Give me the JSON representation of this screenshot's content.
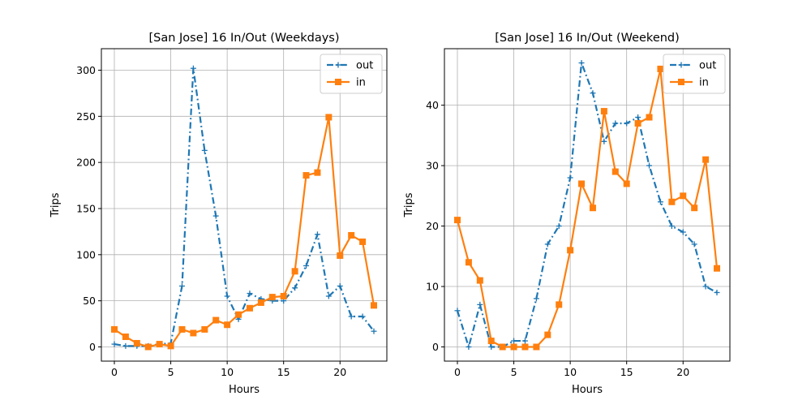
{
  "chart_data": [
    {
      "type": "line",
      "title": "[San Jose] 16 In/Out (Weekdays)",
      "xlabel": "Hours",
      "ylabel": "Trips",
      "xlim": [
        -1.15,
        24.15
      ],
      "ylim": [
        -15.4,
        323.3
      ],
      "xticks": [
        0,
        5,
        10,
        15,
        20
      ],
      "yticks": [
        0,
        50,
        100,
        150,
        200,
        250,
        300
      ],
      "grid": true,
      "legend_position": "top-right",
      "x": [
        0,
        1,
        2,
        3,
        4,
        5,
        6,
        7,
        8,
        9,
        10,
        11,
        12,
        13,
        14,
        15,
        16,
        17,
        18,
        19,
        20,
        21,
        22,
        23
      ],
      "series": [
        {
          "name": "out",
          "color": "#1f77b4",
          "style": "dashdot",
          "marker": "plus",
          "values": [
            3,
            1,
            1,
            1,
            3,
            4,
            66,
            302,
            213,
            142,
            55,
            30,
            58,
            52,
            50,
            50,
            64,
            88,
            122,
            55,
            66,
            33,
            33,
            17
          ]
        },
        {
          "name": "in",
          "color": "#ff7f0e",
          "style": "solid",
          "marker": "square",
          "values": [
            19,
            11,
            4,
            0,
            3,
            1,
            19,
            15,
            19,
            29,
            24,
            35,
            42,
            48,
            54,
            55,
            82,
            186,
            189,
            249,
            99,
            121,
            114,
            45
          ]
        }
      ]
    },
    {
      "type": "line",
      "title": "[San Jose] 16 In/Out (Weekend)",
      "xlabel": "Hours",
      "ylabel": "Trips",
      "xlim": [
        -1.15,
        24.15
      ],
      "ylim": [
        -2.35,
        49.35
      ],
      "xticks": [
        0,
        5,
        10,
        15,
        20
      ],
      "yticks": [
        0,
        10,
        20,
        30,
        40
      ],
      "grid": true,
      "legend_position": "top-right",
      "x": [
        0,
        1,
        2,
        3,
        4,
        5,
        6,
        7,
        8,
        9,
        10,
        11,
        12,
        13,
        14,
        15,
        16,
        17,
        18,
        19,
        20,
        21,
        22,
        23
      ],
      "series": [
        {
          "name": "out",
          "color": "#1f77b4",
          "style": "dashdot",
          "marker": "plus",
          "values": [
            6,
            0,
            7,
            0,
            0,
            1,
            1,
            8,
            17,
            20,
            28,
            47,
            42,
            34,
            37,
            37,
            38,
            30,
            24,
            20,
            19,
            17,
            10,
            9
          ]
        },
        {
          "name": "in",
          "color": "#ff7f0e",
          "style": "solid",
          "marker": "square",
          "values": [
            21,
            14,
            11,
            1,
            0,
            0,
            0,
            0,
            2,
            7,
            16,
            27,
            23,
            39,
            29,
            27,
            37,
            38,
            46,
            24,
            25,
            23,
            31,
            13
          ]
        }
      ]
    }
  ]
}
